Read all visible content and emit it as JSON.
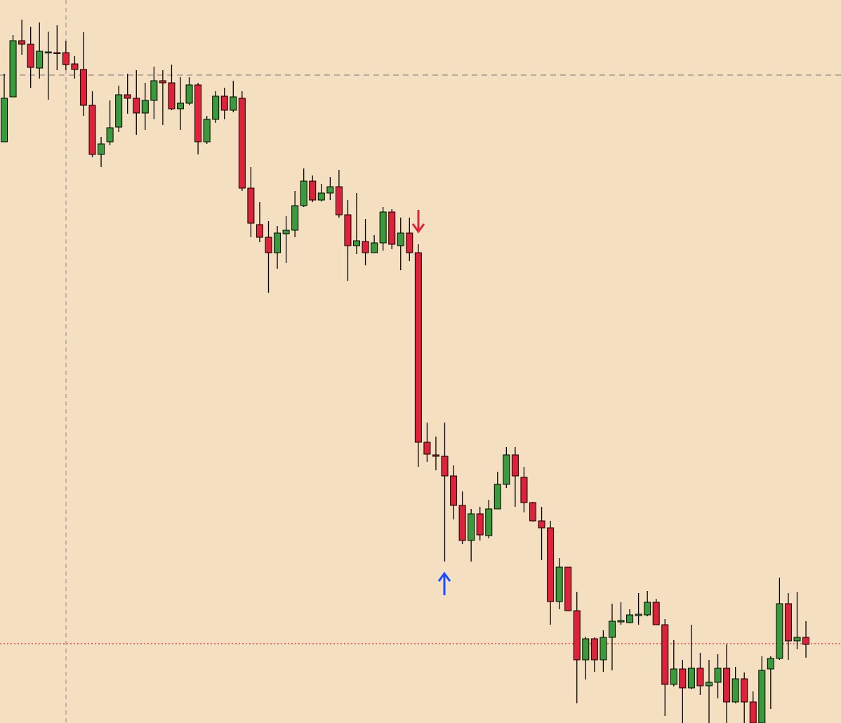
{
  "chart_data": {
    "type": "candlestick",
    "ylim": [
      0,
      1030
    ],
    "open": [
      828,
      892,
      972,
      967,
      933,
      955,
      955,
      955,
      939,
      931,
      880,
      810,
      828,
      849,
      895,
      890,
      869,
      887,
      915,
      912,
      875,
      883,
      909,
      828,
      860,
      893,
      873,
      890,
      762,
      710,
      692,
      670,
      697,
      702,
      737,
      772,
      745,
      755,
      764,
      724,
      680,
      686,
      670,
      684,
      728,
      680,
      698,
      670,
      400,
      382,
      380,
      352,
      310,
      260,
      298,
      267,
      305,
      340,
      382,
      350,
      314,
      288,
      278,
      173,
      222,
      160,
      90,
      120,
      90,
      122,
      144,
      143,
      153,
      154,
      172,
      140,
      55,
      77,
      50,
      78,
      53,
      58,
      78,
      30,
      63,
      30,
      0,
      77,
      92,
      170,
      117,
      122
    ],
    "high": [
      925,
      980,
      1002,
      992,
      998,
      985,
      994,
      972,
      950,
      984,
      900,
      835,
      887,
      908,
      925,
      930,
      912,
      935,
      930,
      938,
      920,
      920,
      912,
      865,
      900,
      905,
      915,
      900,
      792,
      742,
      715,
      708,
      722,
      758,
      790,
      780,
      768,
      778,
      788,
      745,
      755,
      718,
      695,
      735,
      732,
      720,
      720,
      682,
      428,
      408,
      428,
      367,
      330,
      305,
      308,
      318,
      358,
      393,
      393,
      365,
      315,
      308,
      288,
      235,
      222,
      187,
      123,
      122,
      132,
      170,
      172,
      162,
      185,
      188,
      177,
      148,
      118,
      90,
      140,
      100,
      90,
      98,
      112,
      80,
      72,
      45,
      95,
      95,
      207,
      185,
      187,
      145
    ],
    "low": [
      828,
      892,
      952,
      905,
      918,
      888,
      930,
      930,
      918,
      865,
      806,
      792,
      823,
      842,
      868,
      838,
      845,
      860,
      852,
      873,
      845,
      880,
      810,
      825,
      855,
      860,
      870,
      758,
      692,
      685,
      613,
      647,
      655,
      692,
      735,
      742,
      743,
      745,
      720,
      630,
      668,
      652,
      670,
      673,
      675,
      645,
      658,
      365,
      372,
      360,
      230,
      290,
      255,
      230,
      260,
      263,
      305,
      335,
      308,
      300,
      287,
      232,
      140,
      162,
      160,
      28,
      62,
      73,
      73,
      75,
      140,
      142,
      140,
      152,
      140,
      10,
      52,
      0,
      48,
      40,
      0,
      35,
      0,
      28,
      0,
      0,
      0,
      20,
      90,
      90,
      105,
      93
    ],
    "close": [
      890,
      972,
      967,
      934,
      957,
      956,
      954,
      938,
      931,
      880,
      810,
      825,
      848,
      895,
      890,
      869,
      887,
      915,
      912,
      875,
      883,
      909,
      828,
      860,
      893,
      873,
      892,
      762,
      712,
      692,
      670,
      698,
      702,
      737,
      772,
      745,
      755,
      764,
      724,
      680,
      687,
      670,
      684,
      728,
      682,
      698,
      670,
      400,
      383,
      380,
      352,
      310,
      260,
      298,
      268,
      305,
      340,
      382,
      352,
      314,
      288,
      278,
      173,
      222,
      160,
      90,
      120,
      90,
      122,
      145,
      146,
      154,
      155,
      172,
      140,
      55,
      77,
      50,
      78,
      53,
      58,
      78,
      30,
      63,
      30,
      0,
      75,
      92,
      170,
      117,
      122,
      112
    ],
    "up_color": "#3b9a3b",
    "down_color": "#e0213a",
    "levels": [
      {
        "value": 923,
        "color": "#8a8a8a",
        "style": "dashed"
      },
      {
        "value": 113,
        "color": "#e0213a",
        "style": "dotted"
      }
    ]
  }
}
